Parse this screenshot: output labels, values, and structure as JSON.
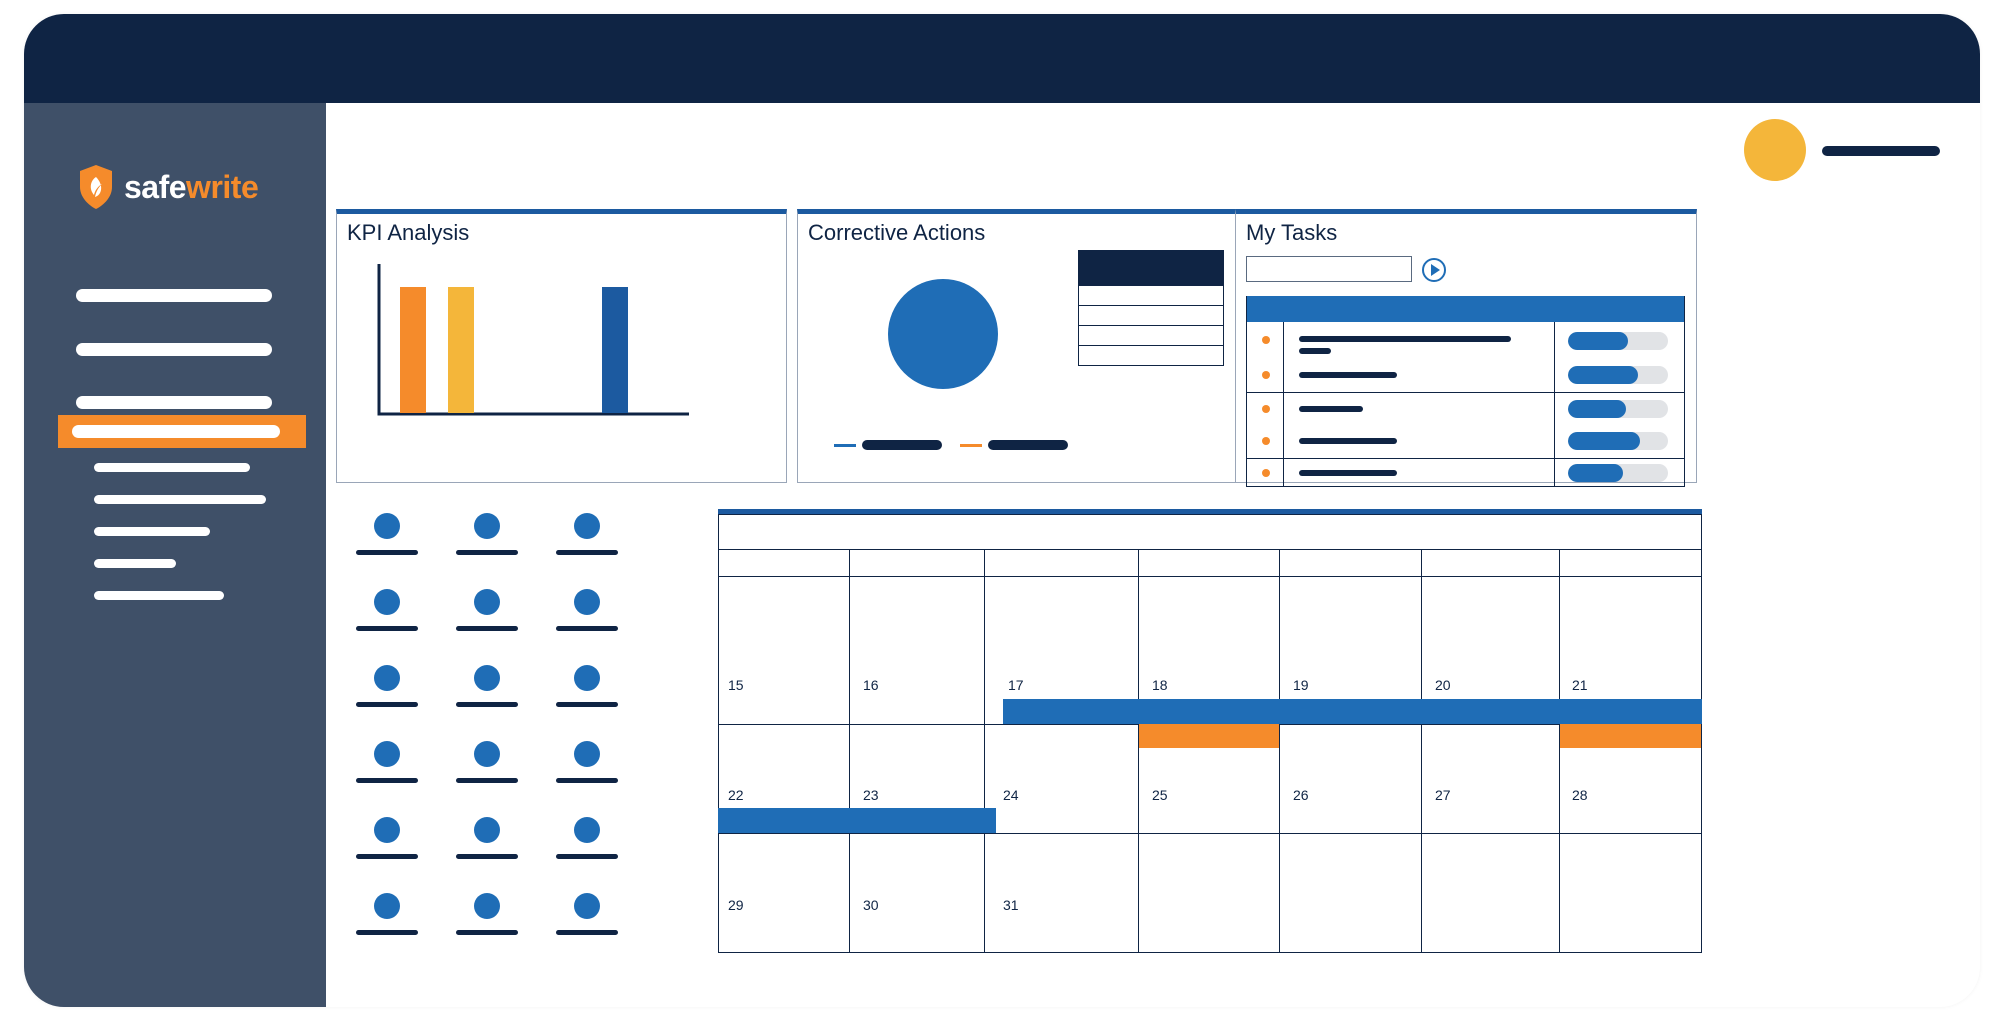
{
  "brand": {
    "name_part1": "safe",
    "name_part2": "write",
    "colors": {
      "navy": "#0f2444",
      "sidebar": "#3f5068",
      "orange": "#f58b2b",
      "yellow": "#f4b63a",
      "blue": "#1f6db6",
      "dark_blue": "#1c5aa0"
    },
    "icon": "shield-leaf-icon"
  },
  "sidebar": {
    "items_count_visible": 4,
    "active_index": 3,
    "subitems_count_visible": 5
  },
  "header": {
    "user_avatar_color": "#f4b63a"
  },
  "kpi": {
    "title": "KPI Analysis",
    "chart_data": {
      "type": "bar",
      "categories": [
        "",
        "",
        "",
        ""
      ],
      "series": [
        {
          "values": [
            100,
            100,
            0,
            100
          ]
        }
      ],
      "bar_colors": [
        "#f58b2b",
        "#f4b63a",
        "#ffffff",
        "#1c5aa0"
      ],
      "title": "",
      "xlabel": "",
      "ylabel": "",
      "grid": false
    }
  },
  "corrective_actions": {
    "title": "Corrective Actions",
    "chart_data": {
      "type": "pie",
      "values": [
        100
      ],
      "colors": [
        "#1f6db6"
      ],
      "legend": [
        "#1f6db6",
        "#f58b2b"
      ]
    },
    "table_rows_visible": 4
  },
  "my_tasks": {
    "title": "My Tasks",
    "search_value": "",
    "tasks": [
      {
        "progress": 0.6
      },
      {
        "progress": 0.7
      },
      {
        "progress": 0.58
      },
      {
        "progress": 0.72
      },
      {
        "progress": 0.55
      }
    ]
  },
  "people": {
    "rows": 6,
    "cols": 3
  },
  "calendar": {
    "weeks": [
      [
        "15",
        "16",
        "17",
        "18",
        "19",
        "20",
        "21"
      ],
      [
        "22",
        "23",
        "24",
        "25",
        "26",
        "27",
        "28"
      ],
      [
        "29",
        "30",
        "31",
        "",
        "",
        "",
        ""
      ]
    ]
  }
}
